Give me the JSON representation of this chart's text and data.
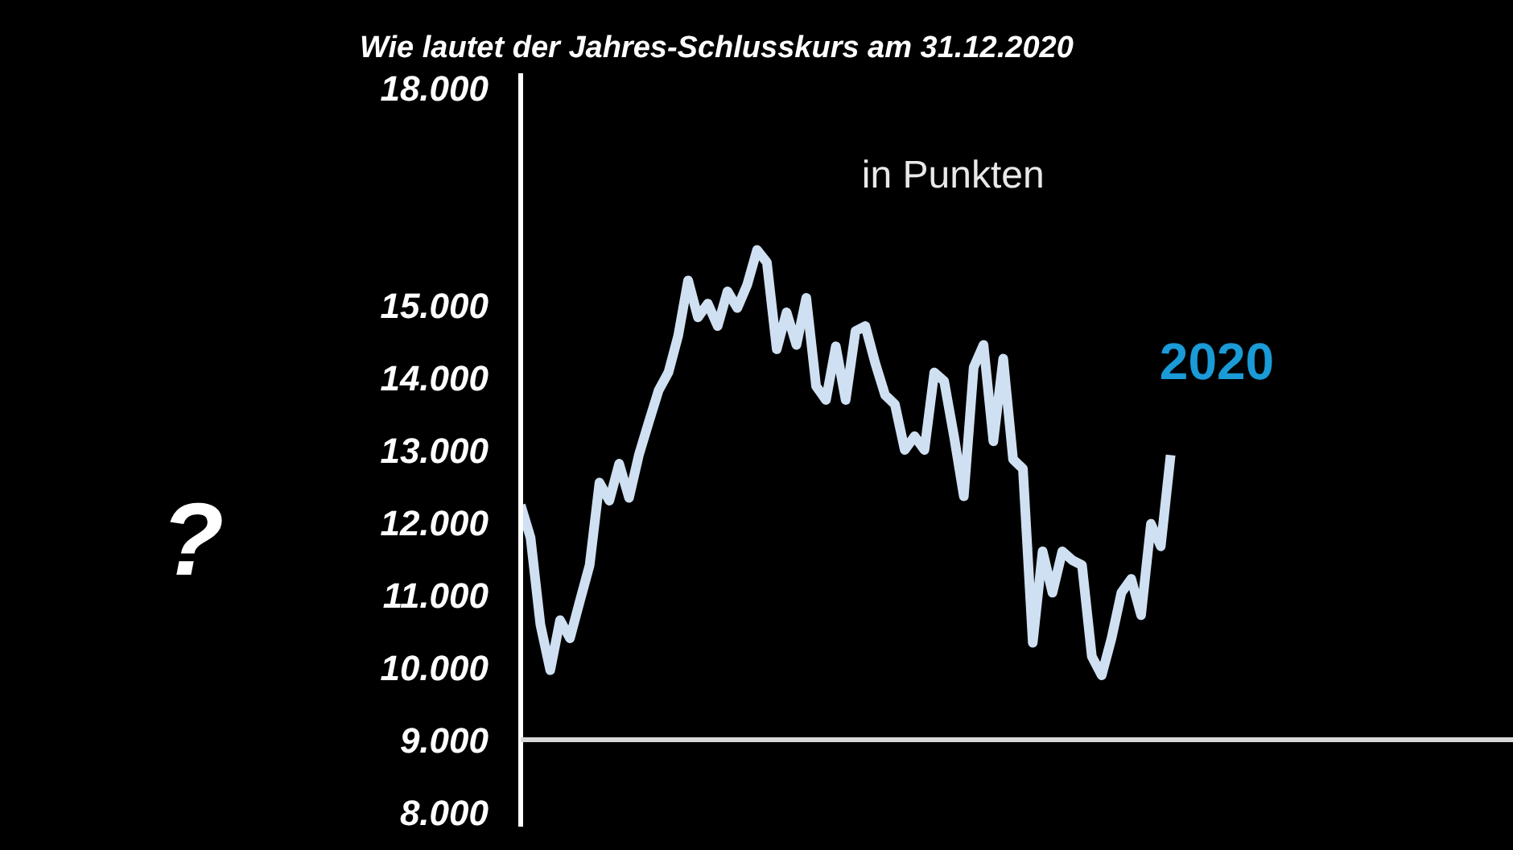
{
  "chart_data": {
    "type": "line",
    "title": "Wie lautet der Jahres-Schlusskurs am 31.12.2020",
    "categories": [
      null,
      null,
      null,
      null,
      null,
      null,
      null,
      null,
      null,
      null,
      null,
      null,
      null,
      null,
      null,
      null,
      null,
      null,
      null,
      null,
      null,
      null,
      null,
      null,
      null,
      null,
      null,
      null,
      null,
      null,
      null,
      null,
      null,
      null,
      null,
      null,
      null,
      null,
      null,
      null,
      null,
      null,
      null,
      null,
      null,
      null,
      null,
      null,
      null,
      null,
      null,
      null,
      null,
      null,
      null,
      null,
      null,
      null,
      null,
      null,
      null,
      null,
      null,
      null,
      null,
      null,
      null
    ],
    "series": [
      {
        "color": "#cfe0f2",
        "values": [
          12240,
          11790,
          10590,
          9960,
          10650,
          10400,
          10910,
          11410,
          12550,
          12300,
          12810,
          12340,
          12930,
          13380,
          13820,
          14070,
          14580,
          15340,
          14830,
          15020,
          14710,
          15190,
          14960,
          15280,
          15760,
          15590,
          14390,
          14900,
          14450,
          15100,
          13880,
          13690,
          14430,
          13690,
          14640,
          14710,
          14200,
          13760,
          13630,
          13000,
          13190,
          13000,
          14070,
          13950,
          13190,
          12360,
          14140,
          14450,
          13120,
          14260,
          12870,
          12740,
          10340,
          11600,
          11030,
          11600,
          11480,
          11410,
          10150,
          9890,
          10400,
          11030,
          11220,
          10720,
          11980,
          11670,
          12930
        ]
      }
    ],
    "ylim": [
      7800,
      18200
    ],
    "yticks": [
      {
        "value": 8000,
        "label": "8.000"
      },
      {
        "value": 9000,
        "label": "9.000"
      },
      {
        "value": 10000,
        "label": "10.000"
      },
      {
        "value": 11000,
        "label": "11.000"
      },
      {
        "value": 12000,
        "label": "12.000"
      },
      {
        "value": 13000,
        "label": "13.000"
      },
      {
        "value": 14000,
        "label": "14.000"
      },
      {
        "value": 15000,
        "label": "15.000"
      },
      {
        "value": 18000,
        "label": "18.000"
      }
    ],
    "ref_lines": [
      {
        "axis": "y",
        "value": 9000,
        "color": "#d8d8d8"
      }
    ],
    "annotations": [
      "in Punkten",
      "2020",
      "?"
    ],
    "grid": false,
    "tick_labels": "y"
  }
}
